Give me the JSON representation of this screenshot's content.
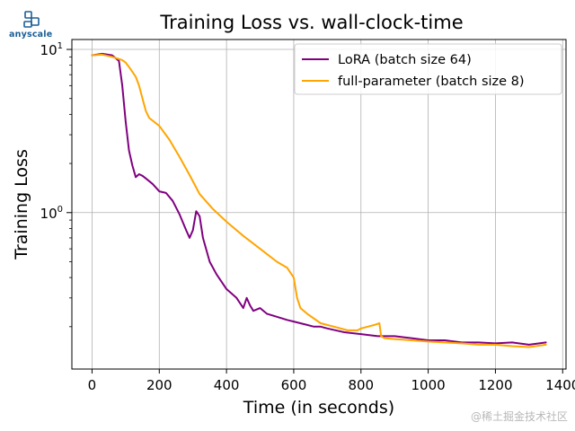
{
  "brand": {
    "logo_text": "anyscale"
  },
  "watermark": "@稀土掘金技术社区",
  "colors": {
    "lora": "#800080",
    "full": "#FFA500",
    "grid": "#b0b0b0"
  },
  "chart_data": {
    "type": "line",
    "title": "Training Loss vs. wall-clock-time",
    "xlabel": "Time (in seconds)",
    "ylabel": "Training Loss",
    "xlim": [
      -60,
      1410
    ],
    "ylim": [
      0.11,
      11.5
    ],
    "yscale": "log",
    "grid": true,
    "legend_position": "top-right",
    "x_ticks": [
      0,
      200,
      400,
      600,
      800,
      1000,
      1200,
      1400
    ],
    "x_tick_labels": [
      "0",
      "200",
      "400",
      "600",
      "800",
      "1000",
      "1200",
      "1400"
    ],
    "y_ticks": [
      1,
      10
    ],
    "y_tick_labels": [
      {
        "base": "10",
        "exp": "0"
      },
      {
        "base": "10",
        "exp": "1"
      }
    ],
    "series": [
      {
        "name": "LoRA (batch size 64)",
        "color": "#800080",
        "x": [
          0,
          30,
          60,
          80,
          90,
          100,
          110,
          120,
          130,
          140,
          150,
          160,
          180,
          200,
          220,
          240,
          260,
          280,
          290,
          300,
          310,
          320,
          330,
          350,
          370,
          400,
          430,
          450,
          460,
          470,
          480,
          500,
          520,
          550,
          580,
          600,
          620,
          640,
          660,
          680,
          700,
          750,
          800,
          850,
          900,
          950,
          1000,
          1050,
          1100,
          1150,
          1200,
          1250,
          1300,
          1350
        ],
        "y": [
          9.2,
          9.4,
          9.2,
          8.5,
          6.0,
          3.6,
          2.4,
          1.95,
          1.65,
          1.72,
          1.68,
          1.62,
          1.5,
          1.35,
          1.32,
          1.18,
          0.98,
          0.78,
          0.7,
          0.78,
          1.02,
          0.95,
          0.7,
          0.5,
          0.42,
          0.34,
          0.3,
          0.26,
          0.3,
          0.27,
          0.25,
          0.26,
          0.24,
          0.23,
          0.22,
          0.215,
          0.21,
          0.205,
          0.2,
          0.2,
          0.195,
          0.185,
          0.18,
          0.175,
          0.175,
          0.17,
          0.165,
          0.165,
          0.16,
          0.16,
          0.158,
          0.16,
          0.155,
          0.16
        ]
      },
      {
        "name": "full-parameter (batch size 8)",
        "color": "#FFA500",
        "x": [
          0,
          30,
          60,
          90,
          100,
          110,
          120,
          130,
          140,
          150,
          160,
          170,
          200,
          230,
          260,
          290,
          320,
          360,
          400,
          450,
          500,
          550,
          580,
          600,
          610,
          620,
          640,
          680,
          720,
          760,
          790,
          800,
          820,
          840,
          855,
          860,
          870,
          900,
          950,
          1000,
          1050,
          1100,
          1150,
          1200,
          1250,
          1300,
          1350
        ],
        "y": [
          9.2,
          9.3,
          9.0,
          8.6,
          8.3,
          7.8,
          7.3,
          6.8,
          6.0,
          5.0,
          4.2,
          3.8,
          3.4,
          2.8,
          2.2,
          1.7,
          1.3,
          1.05,
          0.88,
          0.72,
          0.6,
          0.5,
          0.46,
          0.4,
          0.3,
          0.26,
          0.24,
          0.21,
          0.2,
          0.19,
          0.19,
          0.195,
          0.2,
          0.205,
          0.21,
          0.175,
          0.17,
          0.168,
          0.165,
          0.162,
          0.16,
          0.158,
          0.155,
          0.155,
          0.152,
          0.15,
          0.155
        ]
      }
    ]
  }
}
